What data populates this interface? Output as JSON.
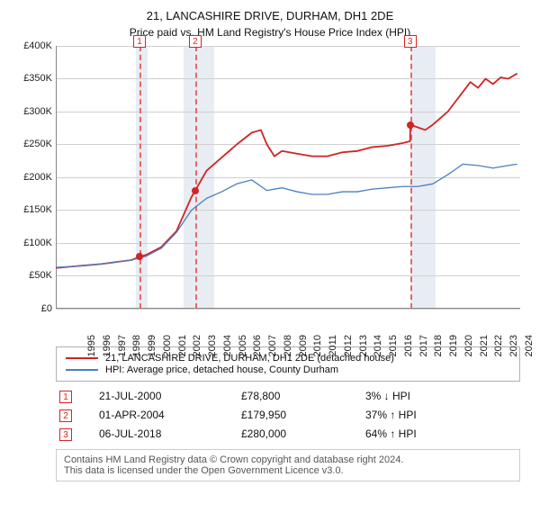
{
  "title": "21, LANCASHIRE DRIVE, DURHAM, DH1 2DE",
  "subtitle": "Price paid vs. HM Land Registry's House Price Index (HPI)",
  "chart": {
    "type": "line",
    "x_start_year": 1995,
    "x_end_year": 2025,
    "xlim": [
      1995,
      2025.8
    ],
    "ylim": [
      0,
      400000
    ],
    "ytick_step": 50000,
    "ytick_prefix": "£",
    "ytick_suffix": "K",
    "grid_color": "#d0d0d0",
    "axis_color": "#888888",
    "background_color": "#ffffff",
    "shaded_bands_color": "#e8ecf3",
    "shaded_bands": [
      [
        2000.3,
        2001.1
      ],
      [
        2003.5,
        2005.5
      ],
      [
        2018.5,
        2020.2
      ]
    ],
    "event_vline_color": "#e06a6a",
    "events": [
      {
        "x": 2000.55,
        "n": "1"
      },
      {
        "x": 2004.25,
        "n": "2"
      },
      {
        "x": 2018.5,
        "n": "3"
      }
    ],
    "event_marker_top_offset": -12,
    "series": [
      {
        "id": "subject",
        "label": "21, LANCASHIRE DRIVE, DURHAM, DH1 2DE (detached house)",
        "color": "#d22424",
        "width": 1.8,
        "data": [
          [
            1995.0,
            62000
          ],
          [
            1996.0,
            64000
          ],
          [
            1997.0,
            66000
          ],
          [
            1998.0,
            68000
          ],
          [
            1999.0,
            71000
          ],
          [
            2000.0,
            74000
          ],
          [
            2000.55,
            78800
          ],
          [
            2001.0,
            82000
          ],
          [
            2002.0,
            94000
          ],
          [
            2003.0,
            118000
          ],
          [
            2004.0,
            170000
          ],
          [
            2004.25,
            179950
          ],
          [
            2005.0,
            210000
          ],
          [
            2006.0,
            230000
          ],
          [
            2007.0,
            250000
          ],
          [
            2008.0,
            268000
          ],
          [
            2008.6,
            272000
          ],
          [
            2009.0,
            250000
          ],
          [
            2009.5,
            232000
          ],
          [
            2010.0,
            240000
          ],
          [
            2011.0,
            236000
          ],
          [
            2012.0,
            232000
          ],
          [
            2013.0,
            232000
          ],
          [
            2014.0,
            238000
          ],
          [
            2015.0,
            240000
          ],
          [
            2016.0,
            246000
          ],
          [
            2017.0,
            248000
          ],
          [
            2018.0,
            252000
          ],
          [
            2018.5,
            255000
          ],
          [
            2018.51,
            280000
          ],
          [
            2019.0,
            276000
          ],
          [
            2019.5,
            272000
          ],
          [
            2020.0,
            280000
          ],
          [
            2021.0,
            300000
          ],
          [
            2022.0,
            330000
          ],
          [
            2022.5,
            345000
          ],
          [
            2023.0,
            336000
          ],
          [
            2023.5,
            350000
          ],
          [
            2024.0,
            342000
          ],
          [
            2024.5,
            352000
          ],
          [
            2025.0,
            350000
          ],
          [
            2025.6,
            358000
          ]
        ]
      },
      {
        "id": "hpi",
        "label": "HPI: Average price, detached house, County Durham",
        "color": "#4a7fc2",
        "width": 1.3,
        "data": [
          [
            1995.0,
            63000
          ],
          [
            1996.0,
            64000
          ],
          [
            1997.0,
            66000
          ],
          [
            1998.0,
            68000
          ],
          [
            1999.0,
            71000
          ],
          [
            2000.0,
            74000
          ],
          [
            2001.0,
            80000
          ],
          [
            2002.0,
            92000
          ],
          [
            2003.0,
            116000
          ],
          [
            2004.0,
            150000
          ],
          [
            2005.0,
            168000
          ],
          [
            2006.0,
            178000
          ],
          [
            2007.0,
            190000
          ],
          [
            2008.0,
            196000
          ],
          [
            2009.0,
            180000
          ],
          [
            2010.0,
            184000
          ],
          [
            2011.0,
            178000
          ],
          [
            2012.0,
            174000
          ],
          [
            2013.0,
            174000
          ],
          [
            2014.0,
            178000
          ],
          [
            2015.0,
            178000
          ],
          [
            2016.0,
            182000
          ],
          [
            2017.0,
            184000
          ],
          [
            2018.0,
            186000
          ],
          [
            2019.0,
            186000
          ],
          [
            2020.0,
            190000
          ],
          [
            2021.0,
            204000
          ],
          [
            2022.0,
            220000
          ],
          [
            2023.0,
            218000
          ],
          [
            2024.0,
            214000
          ],
          [
            2025.0,
            218000
          ],
          [
            2025.6,
            220000
          ]
        ]
      }
    ],
    "sale_points": [
      {
        "x": 2000.55,
        "y": 78800,
        "color": "#d22424"
      },
      {
        "x": 2004.25,
        "y": 179950,
        "color": "#d22424"
      },
      {
        "x": 2018.51,
        "y": 280000,
        "color": "#d22424"
      }
    ]
  },
  "legend": {
    "rows": [
      {
        "color": "#d22424",
        "label": "21, LANCASHIRE DRIVE, DURHAM, DH1 2DE (detached house)"
      },
      {
        "color": "#4a7fc2",
        "label": "HPI: Average price, detached house, County Durham"
      }
    ]
  },
  "events_table": {
    "rows": [
      {
        "n": "1",
        "date": "21-JUL-2000",
        "price": "£78,800",
        "delta": "3% ↓ HPI"
      },
      {
        "n": "2",
        "date": "01-APR-2004",
        "price": "£179,950",
        "delta": "37% ↑ HPI"
      },
      {
        "n": "3",
        "date": "06-JUL-2018",
        "price": "£280,000",
        "delta": "64% ↑ HPI"
      }
    ]
  },
  "footer_line1": "Contains HM Land Registry data © Crown copyright and database right 2024.",
  "footer_line2": "This data is licensed under the Open Government Licence v3.0."
}
